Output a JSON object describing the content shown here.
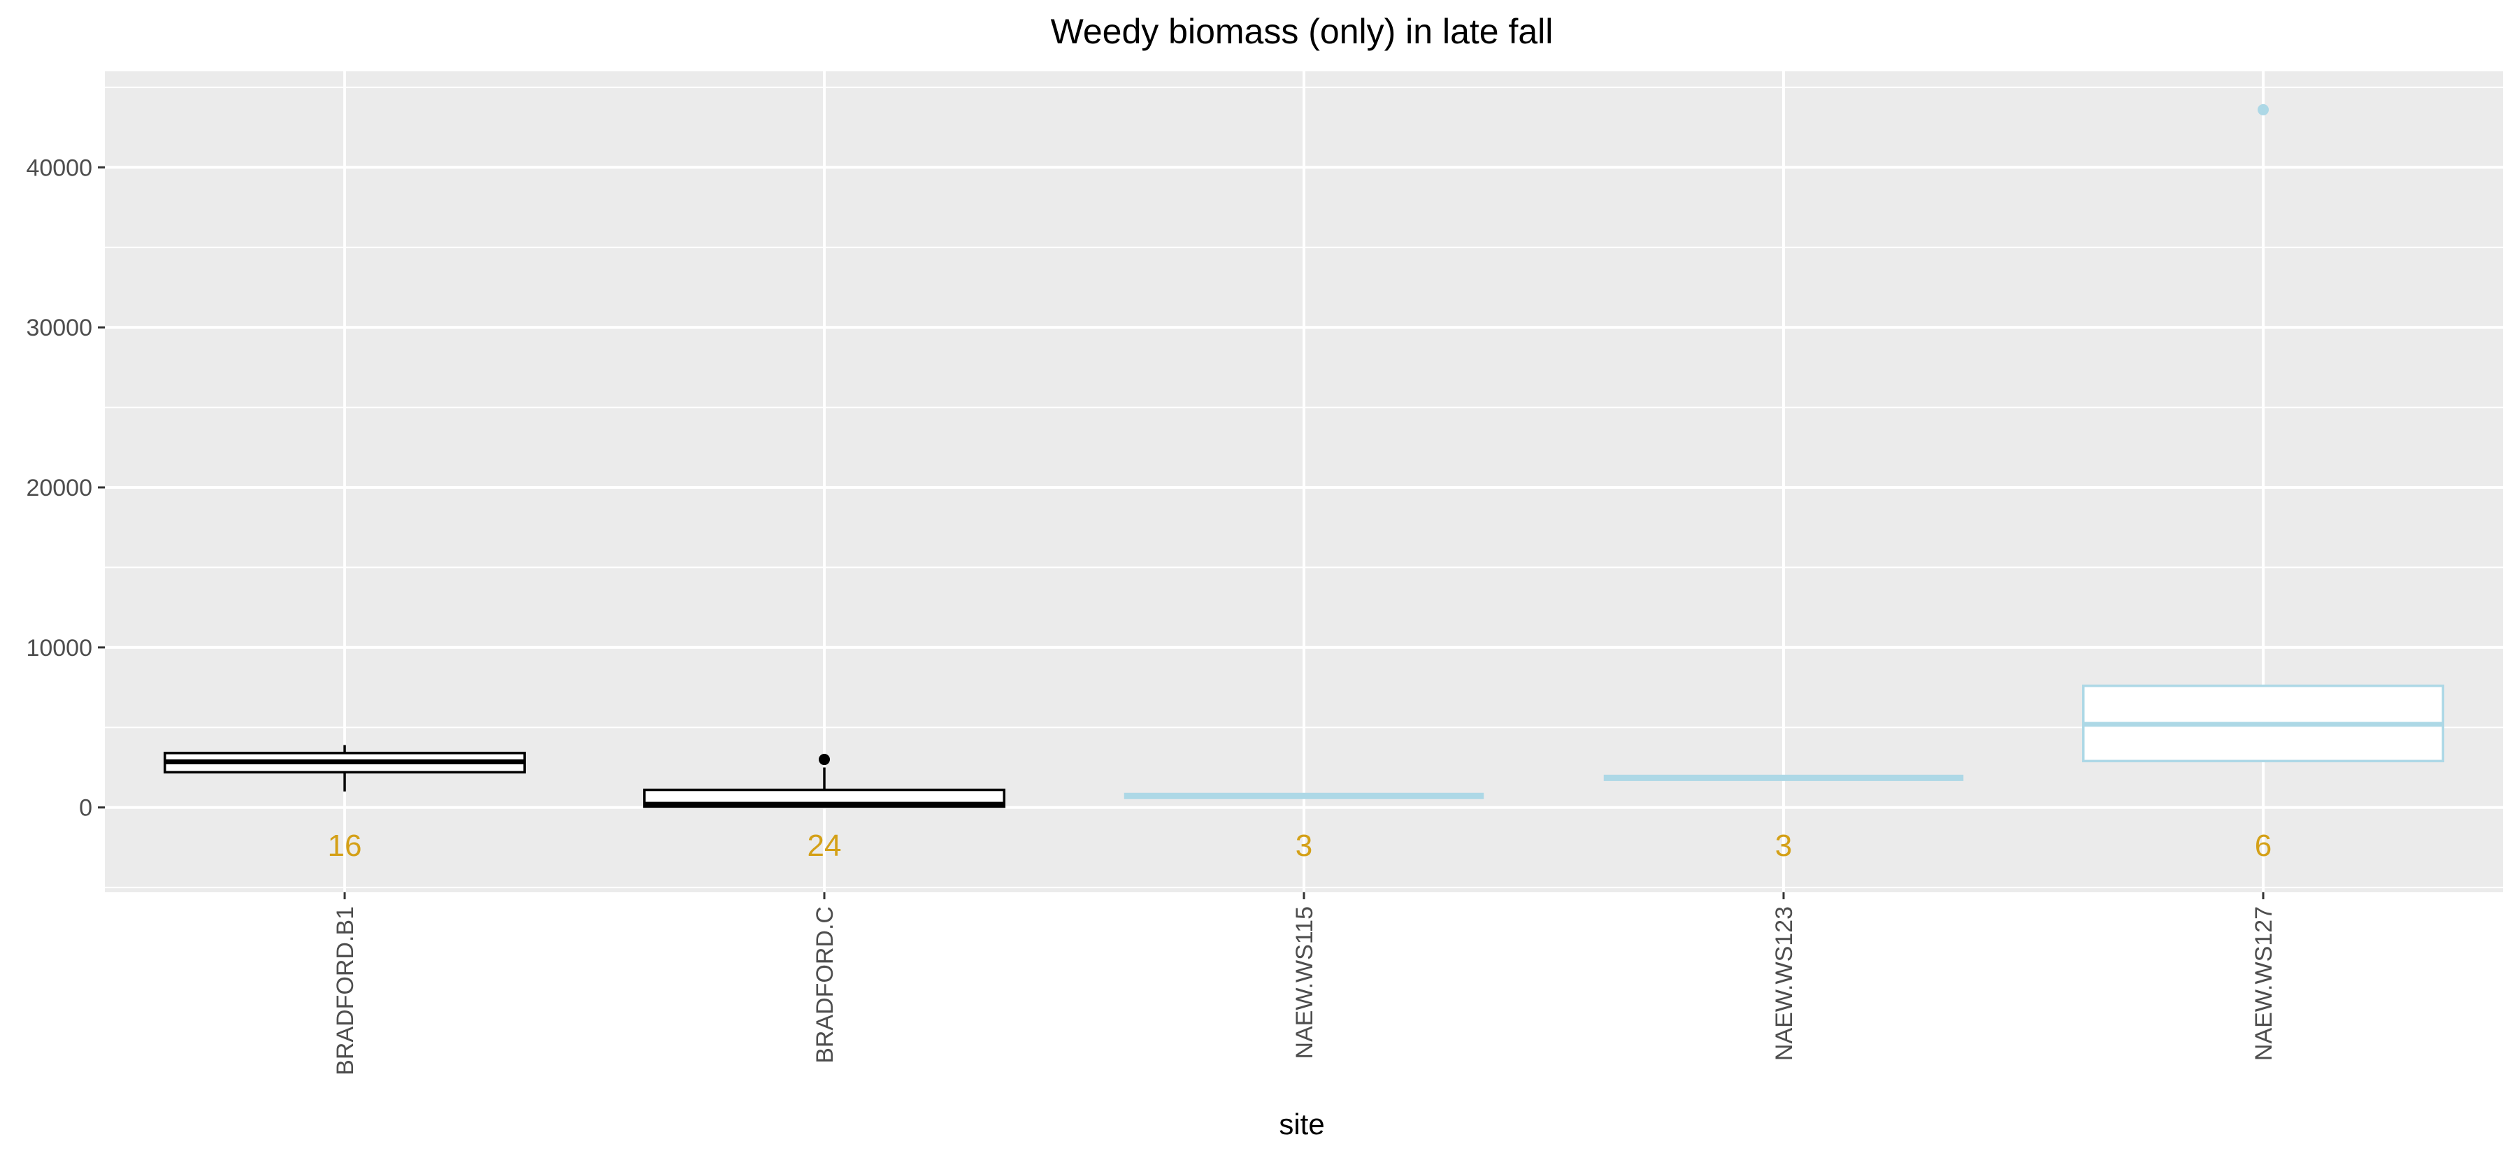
{
  "chart_data": {
    "type": "boxplot",
    "title": "Weedy biomass (only) in late fall",
    "xlabel": "site",
    "ylabel": "",
    "ylim": [
      -5300,
      46000
    ],
    "yticks": [
      0,
      10000,
      20000,
      30000,
      40000
    ],
    "grid": true,
    "legend": "none",
    "categories": [
      "BRADFORD.B1",
      "BRADFORD.C",
      "NAEW.WS115",
      "NAEW.WS123",
      "NAEW.WS127"
    ],
    "boxes": [
      {
        "site": "BRADFORD.B1",
        "color": "#000000",
        "min": 1000,
        "q1": 2200,
        "median": 2850,
        "q3": 3400,
        "max": 3900,
        "outliers": [],
        "count": "16"
      },
      {
        "site": "BRADFORD.C",
        "color": "#000000",
        "min": 0,
        "q1": 50,
        "median": 200,
        "q3": 1100,
        "max": 2500,
        "outliers": [
          3000
        ],
        "count": "24"
      },
      {
        "site": "NAEW.WS115",
        "color": "#add8e6",
        "min": 720,
        "q1": 720,
        "median": 720,
        "q3": 720,
        "max": 720,
        "outliers": [],
        "count": "3"
      },
      {
        "site": "NAEW.WS123",
        "color": "#add8e6",
        "min": 1850,
        "q1": 1850,
        "median": 1850,
        "q3": 1850,
        "max": 1850,
        "outliers": [],
        "count": "3"
      },
      {
        "site": "NAEW.WS127",
        "color": "#add8e6",
        "min": 2900,
        "q1": 2900,
        "median": 5200,
        "q3": 7600,
        "max": 7600,
        "outliers": [
          43600
        ],
        "count": "6"
      }
    ],
    "colors": {
      "panel": "#ebebeb",
      "grid": "#ffffff",
      "count_label": "#d4a017"
    }
  }
}
